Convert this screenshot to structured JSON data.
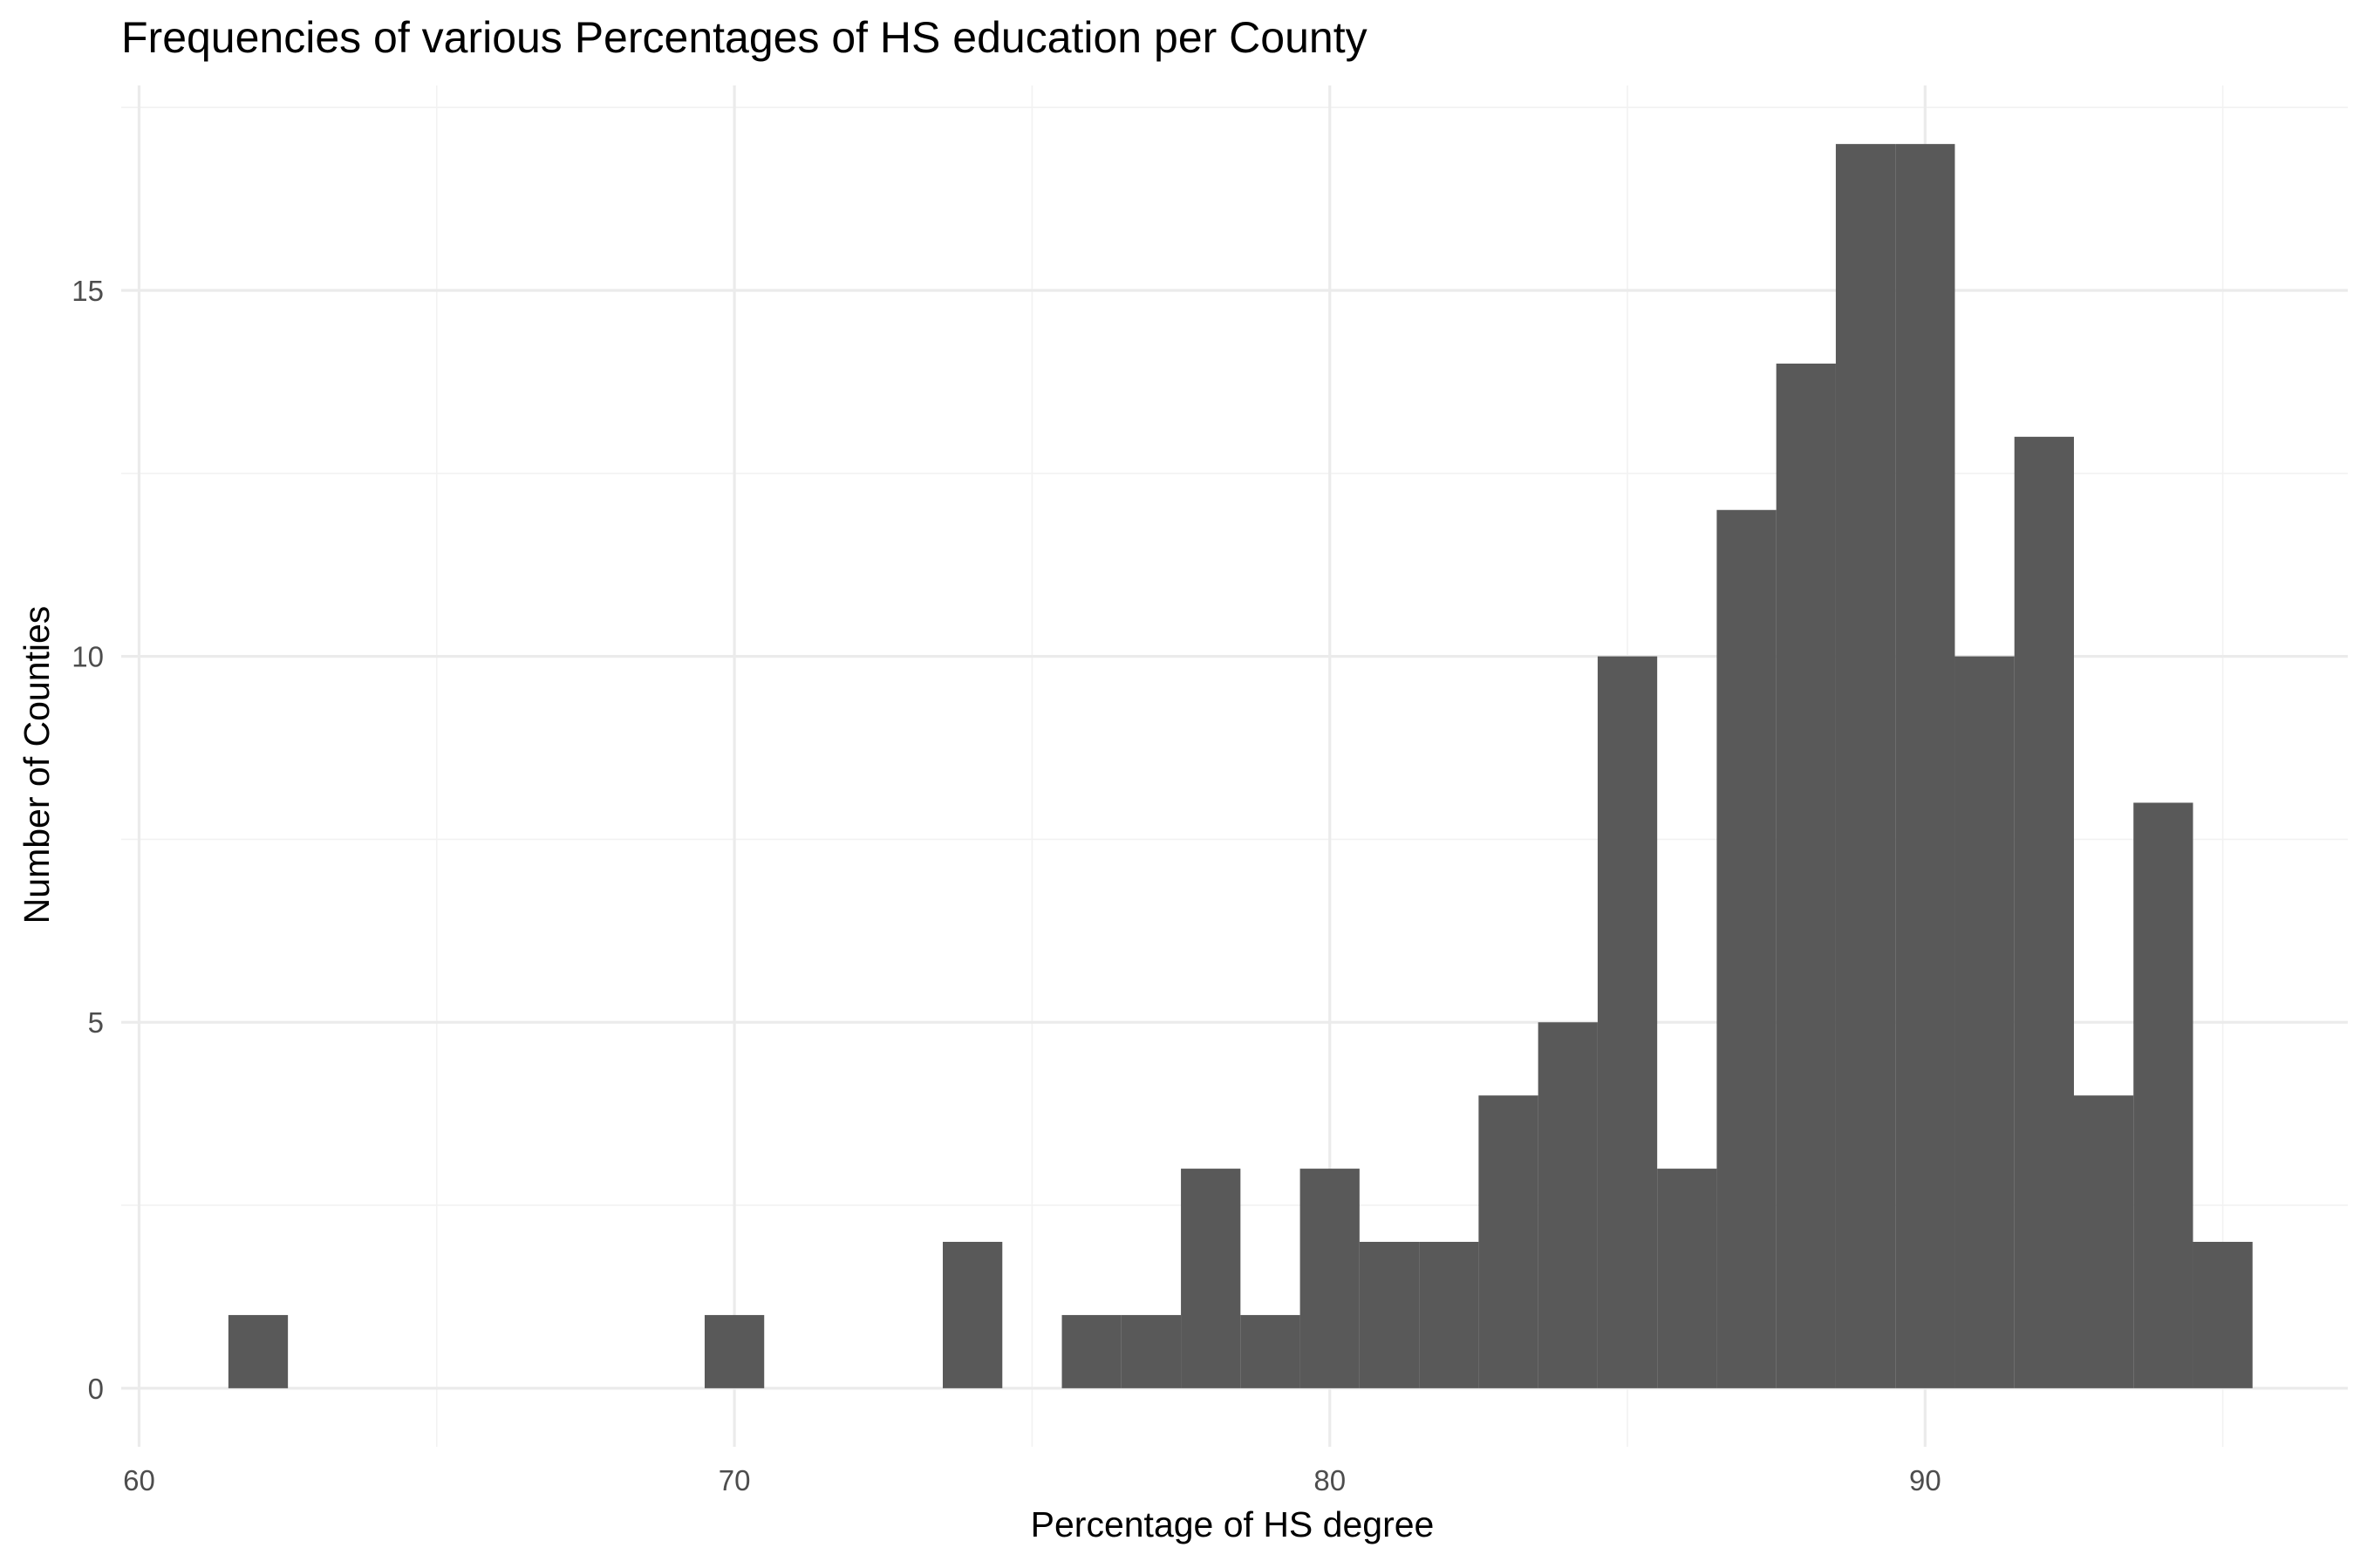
{
  "chart_data": {
    "type": "histogram",
    "title": "Frequencies of various Percentages of HS education per County",
    "xlabel": "Percentage of HS degree",
    "ylabel": "Number of Counties",
    "bar_color": "#595959",
    "grid": true,
    "xlim": [
      59.7,
      97.1
    ],
    "ylim": [
      -0.8,
      17.8
    ],
    "x_ticks": [
      60,
      70,
      80,
      90
    ],
    "x_minor_ticks": [
      65,
      75,
      85,
      95
    ],
    "y_ticks": [
      0,
      5,
      10,
      15
    ],
    "y_minor_ticks": [
      2.5,
      7.5,
      12.5,
      17.5
    ],
    "bins": [
      {
        "x0": 61.5,
        "x1": 62.5,
        "count": 1
      },
      {
        "x0": 69.5,
        "x1": 70.5,
        "count": 1
      },
      {
        "x0": 73.5,
        "x1": 74.5,
        "count": 2
      },
      {
        "x0": 75.5,
        "x1": 76.5,
        "count": 1
      },
      {
        "x0": 76.5,
        "x1": 77.5,
        "count": 1
      },
      {
        "x0": 77.5,
        "x1": 78.5,
        "count": 3
      },
      {
        "x0": 78.5,
        "x1": 79.5,
        "count": 1
      },
      {
        "x0": 79.5,
        "x1": 80.5,
        "count": 3
      },
      {
        "x0": 80.5,
        "x1": 81.5,
        "count": 2
      },
      {
        "x0": 81.5,
        "x1": 82.5,
        "count": 2
      },
      {
        "x0": 82.5,
        "x1": 83.5,
        "count": 4
      },
      {
        "x0": 83.5,
        "x1": 84.5,
        "count": 5
      },
      {
        "x0": 84.5,
        "x1": 85.5,
        "count": 10
      },
      {
        "x0": 85.5,
        "x1": 86.5,
        "count": 3
      },
      {
        "x0": 86.5,
        "x1": 87.5,
        "count": 12
      },
      {
        "x0": 87.5,
        "x1": 88.5,
        "count": 14
      },
      {
        "x0": 88.5,
        "x1": 89.5,
        "count": 17
      },
      {
        "x0": 89.5,
        "x1": 90.5,
        "count": 17
      },
      {
        "x0": 90.5,
        "x1": 91.5,
        "count": 10
      },
      {
        "x0": 91.5,
        "x1": 92.5,
        "count": 13
      },
      {
        "x0": 92.5,
        "x1": 93.5,
        "count": 4
      },
      {
        "x0": 93.5,
        "x1": 94.5,
        "count": 8
      },
      {
        "x0": 94.5,
        "x1": 95.5,
        "count": 2
      }
    ]
  }
}
